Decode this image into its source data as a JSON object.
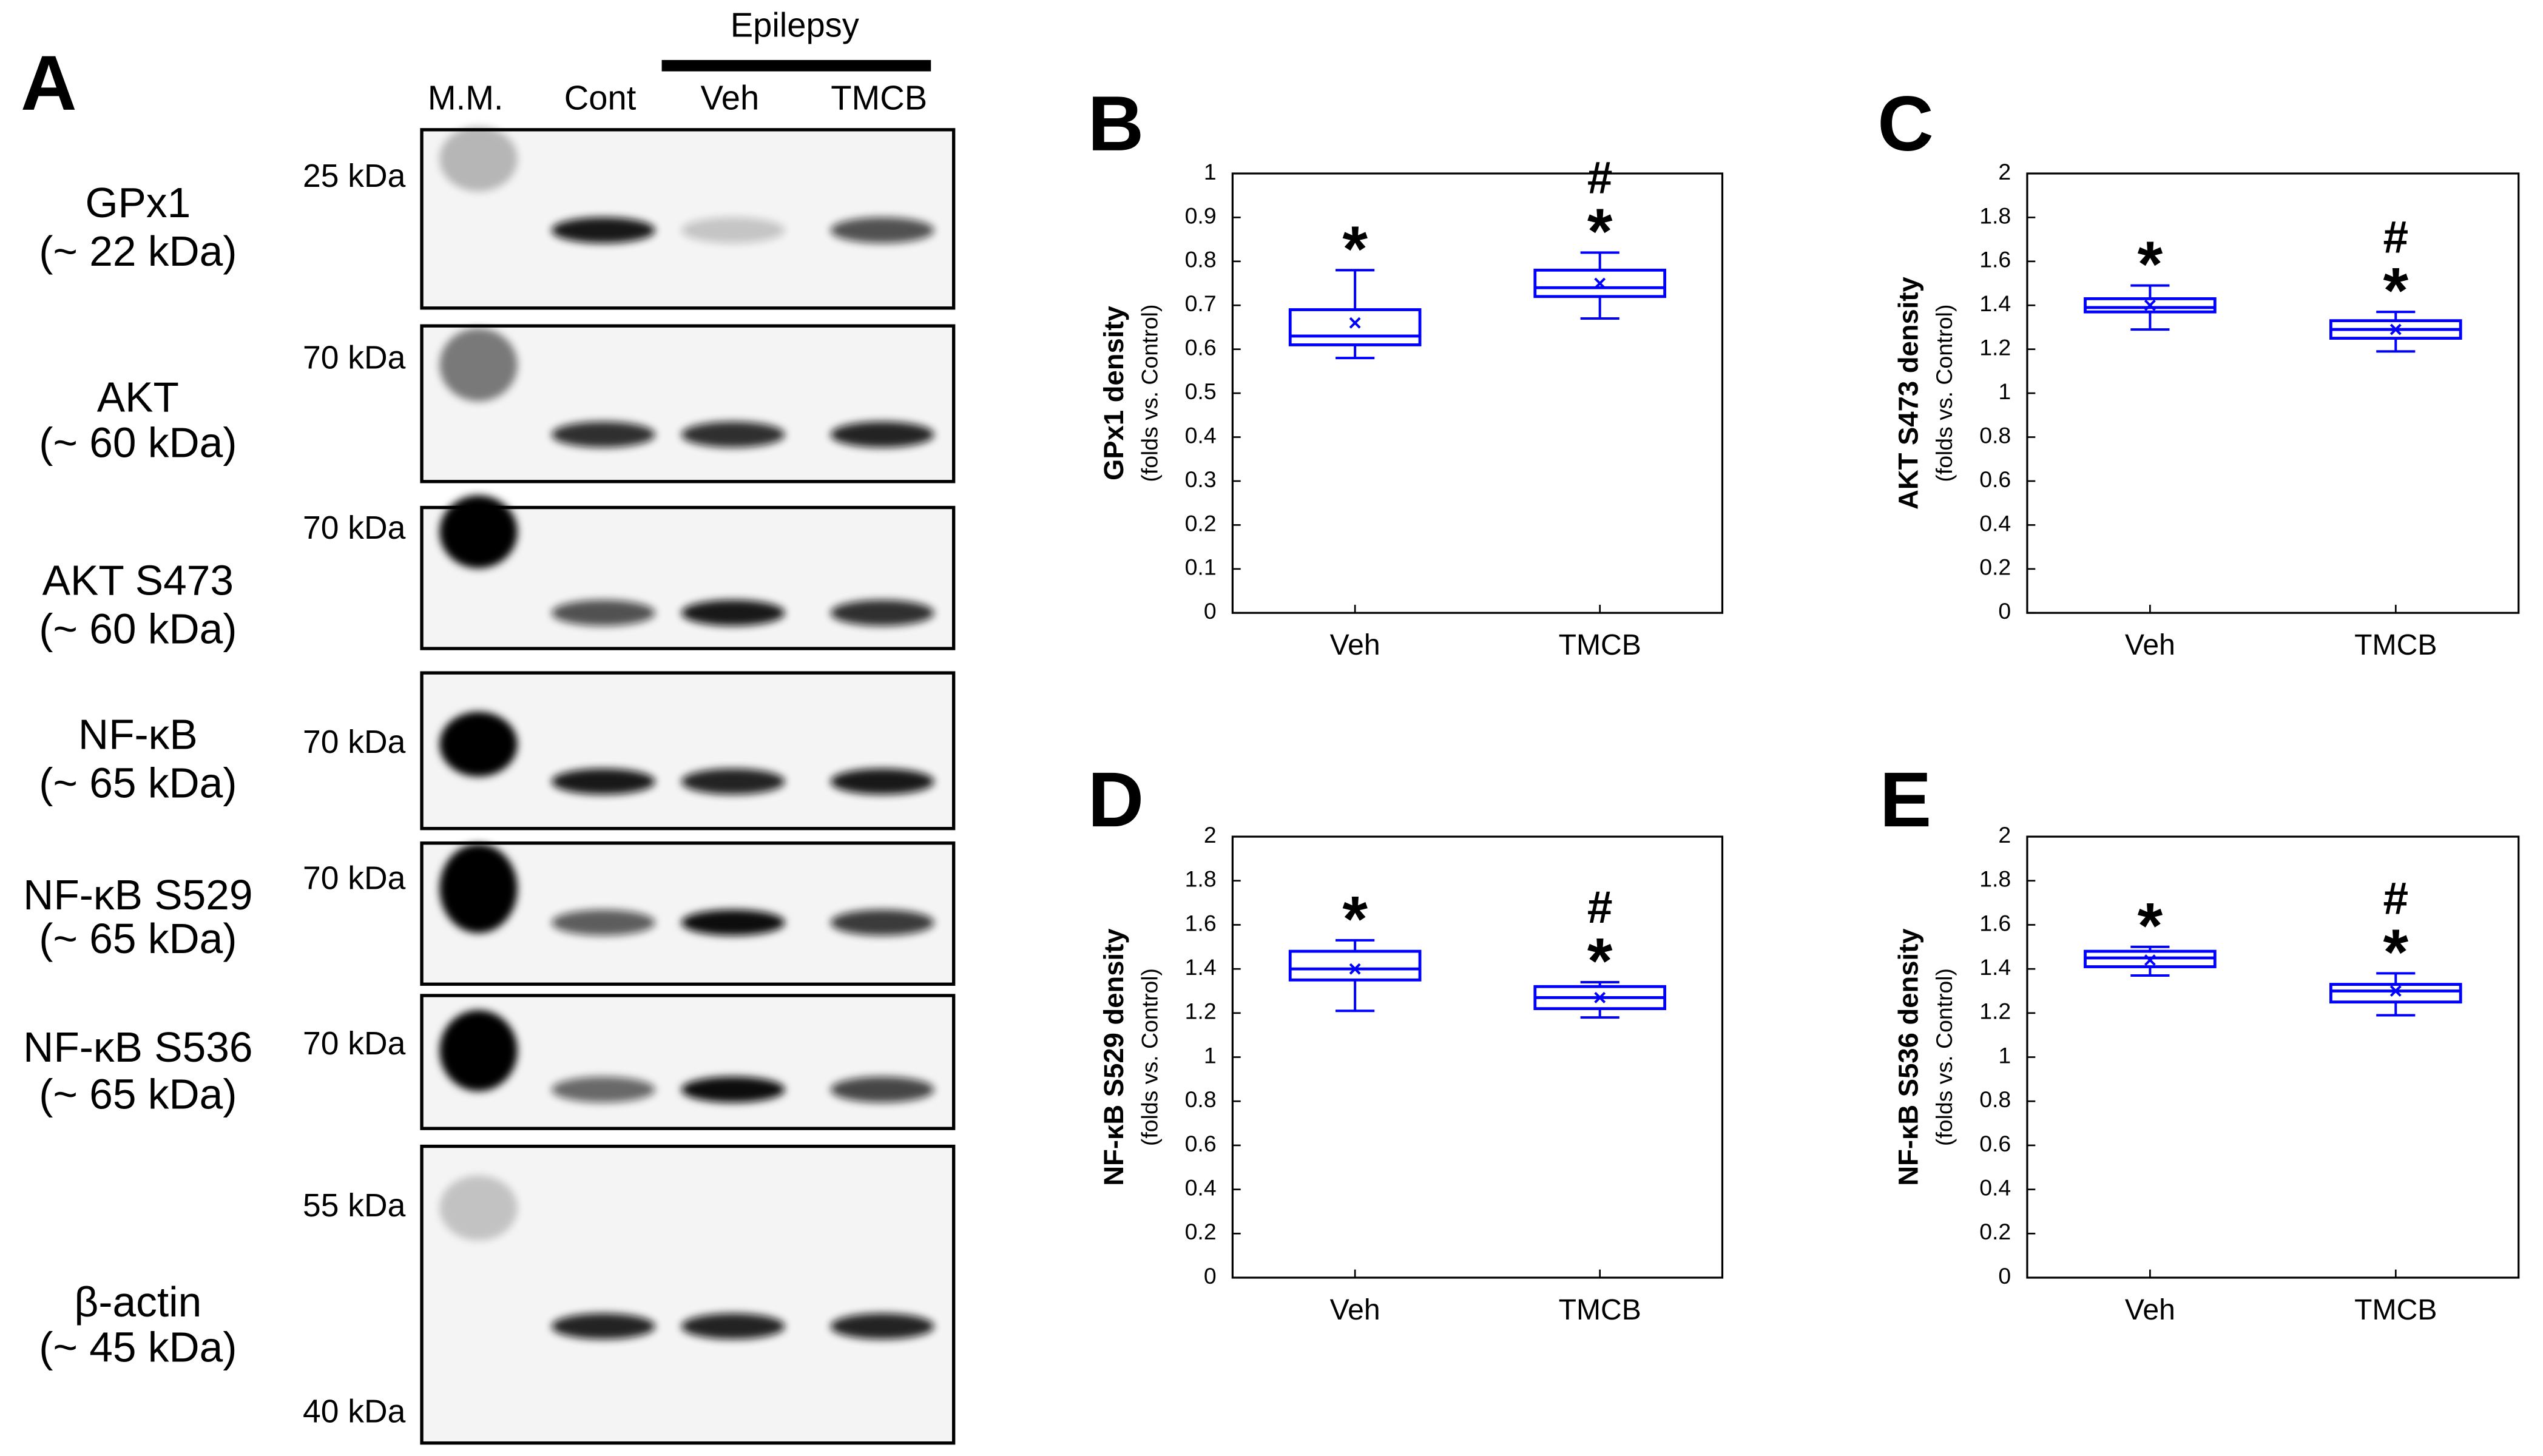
{
  "panel_a": {
    "letter": "A",
    "group": "Epilepsy",
    "lanes": [
      "M.M.",
      "Cont",
      "Veh",
      "TMCB"
    ],
    "rows": [
      {
        "protein": "GPx1",
        "size": "(~ 22 kDa)",
        "markers": [
          "25 kDa"
        ]
      },
      {
        "protein": "AKT",
        "size": "(~ 60 kDa)",
        "markers": [
          "70 kDa"
        ]
      },
      {
        "protein": "AKT S473",
        "size": "(~ 60 kDa)",
        "markers": [
          "70 kDa"
        ]
      },
      {
        "protein": "NF-κB",
        "size": "(~ 65 kDa)",
        "markers": [
          "70 kDa"
        ]
      },
      {
        "protein": "NF-κB S529",
        "size": "(~ 65 kDa)",
        "markers": [
          "70 kDa"
        ]
      },
      {
        "protein": "NF-κB S536",
        "size": "(~ 65 kDa)",
        "markers": [
          "70 kDa"
        ]
      },
      {
        "protein": "β-actin",
        "size": "(~ 45 kDa)",
        "markers": [
          "55 kDa",
          "40 kDa"
        ]
      }
    ]
  },
  "chart_data": [
    {
      "type": "box",
      "panel": "B",
      "ylabel": "GPx1 density",
      "ylabel_sub": "(folds vs. Control)",
      "categories": [
        "Veh",
        "TMCB"
      ],
      "color": "#0000ff",
      "ylim": [
        0,
        1
      ],
      "yticks": [
        0,
        0.1,
        0.2,
        0.3,
        0.4,
        0.5,
        0.6,
        0.7,
        0.8,
        0.9,
        1
      ],
      "boxes": [
        {
          "min": 0.58,
          "q1": 0.61,
          "median": 0.63,
          "q3": 0.69,
          "max": 0.78,
          "mean": 0.66
        },
        {
          "min": 0.67,
          "q1": 0.72,
          "median": 0.74,
          "q3": 0.78,
          "max": 0.82,
          "mean": 0.75
        }
      ],
      "significance": [
        [
          "*"
        ],
        [
          "#",
          "*"
        ]
      ]
    },
    {
      "type": "box",
      "panel": "C",
      "ylabel": "AKT S473 density",
      "ylabel_sub": "(folds vs. Control)",
      "categories": [
        "Veh",
        "TMCB"
      ],
      "color": "#0000ff",
      "ylim": [
        0,
        2
      ],
      "yticks": [
        0,
        0.2,
        0.4,
        0.6,
        0.8,
        1,
        1.2,
        1.4,
        1.6,
        1.8,
        2
      ],
      "boxes": [
        {
          "min": 1.29,
          "q1": 1.37,
          "median": 1.39,
          "q3": 1.43,
          "max": 1.49,
          "mean": 1.4
        },
        {
          "min": 1.19,
          "q1": 1.25,
          "median": 1.29,
          "q3": 1.33,
          "max": 1.37,
          "mean": 1.29
        }
      ],
      "significance": [
        [
          "*"
        ],
        [
          "#",
          "*"
        ]
      ]
    },
    {
      "type": "box",
      "panel": "D",
      "ylabel": "NF-κB S529 density",
      "ylabel_sub": "(folds vs. Control)",
      "categories": [
        "Veh",
        "TMCB"
      ],
      "color": "#0000ff",
      "ylim": [
        0,
        2
      ],
      "yticks": [
        0,
        0.2,
        0.4,
        0.6,
        0.8,
        1,
        1.2,
        1.4,
        1.6,
        1.8,
        2
      ],
      "boxes": [
        {
          "min": 1.21,
          "q1": 1.35,
          "median": 1.4,
          "q3": 1.48,
          "max": 1.53,
          "mean": 1.4
        },
        {
          "min": 1.18,
          "q1": 1.22,
          "median": 1.27,
          "q3": 1.32,
          "max": 1.34,
          "mean": 1.27
        }
      ],
      "significance": [
        [
          "*"
        ],
        [
          "#",
          "*"
        ]
      ]
    },
    {
      "type": "box",
      "panel": "E",
      "ylabel": "NF-κB S536 density",
      "ylabel_sub": "(folds vs. Control)",
      "categories": [
        "Veh",
        "TMCB"
      ],
      "color": "#0000ff",
      "ylim": [
        0,
        2
      ],
      "yticks": [
        0,
        0.2,
        0.4,
        0.6,
        0.8,
        1,
        1.2,
        1.4,
        1.6,
        1.8,
        2
      ],
      "boxes": [
        {
          "min": 1.37,
          "q1": 1.41,
          "median": 1.45,
          "q3": 1.48,
          "max": 1.5,
          "mean": 1.44
        },
        {
          "min": 1.19,
          "q1": 1.25,
          "median": 1.3,
          "q3": 1.33,
          "max": 1.38,
          "mean": 1.3
        }
      ],
      "significance": [
        [
          "*"
        ],
        [
          "#",
          "*"
        ]
      ]
    }
  ]
}
